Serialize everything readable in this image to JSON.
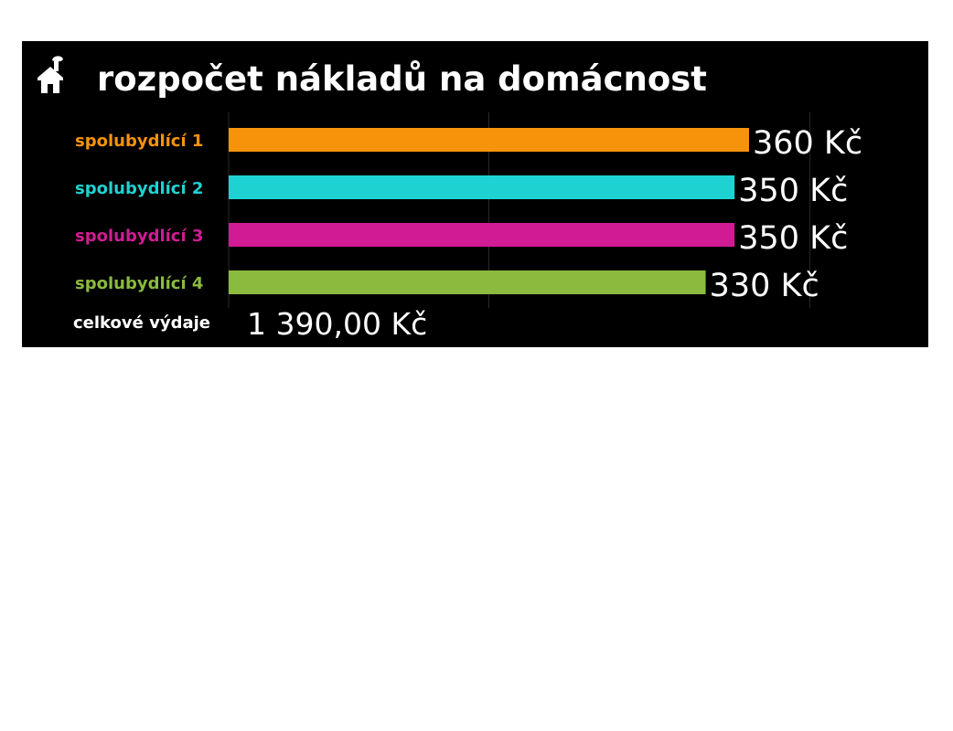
{
  "title": "rozpočet nákladů na domácnost",
  "icons": {
    "title_icon": "house-icon"
  },
  "chart_data": {
    "type": "bar",
    "orientation": "horizontal",
    "categories": [
      "spolubydlící 1",
      "spolubydlící 2",
      "spolubydlící 3",
      "spolubydlící 4"
    ],
    "values": [
      360,
      350,
      350,
      330
    ],
    "value_labels": [
      "360 Kč",
      "350 Kč",
      "350 Kč",
      "330 Kč"
    ],
    "colors": [
      "#f7930b",
      "#1fd2d2",
      "#d11b94",
      "#8bbb3e"
    ],
    "xlim": [
      0,
      360
    ],
    "grid": true,
    "legend": "none"
  },
  "summary": {
    "label": "celkové výdaje",
    "value": "1 390,00 Kč"
  }
}
